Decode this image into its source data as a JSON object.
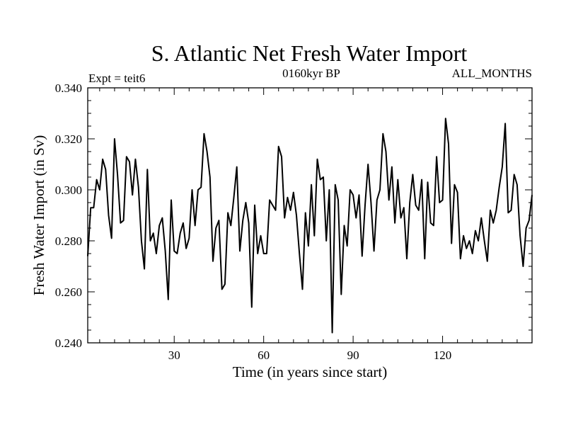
{
  "chart_data": {
    "type": "line",
    "title": "S. Atlantic Net Fresh Water Import",
    "subtitle_left": "Expt = teit6",
    "subtitle_center": "0160kyr BP",
    "subtitle_right": "ALL_MONTHS",
    "xlabel": "Time (in years since start)",
    "ylabel": "Fresh Water Import (in Sv)",
    "xlim": [
      1,
      150
    ],
    "ylim": [
      0.24,
      0.34
    ],
    "x_ticks": [
      30,
      60,
      90,
      120
    ],
    "x_tick_labels": [
      "30",
      "60",
      "90",
      "120"
    ],
    "y_ticks": [
      0.24,
      0.26,
      0.28,
      0.3,
      0.32,
      0.34
    ],
    "y_tick_labels": [
      "0.240",
      "0.260",
      "0.280",
      "0.300",
      "0.320",
      "0.340"
    ],
    "series": [
      {
        "name": "Fresh Water Import",
        "color": "#000000",
        "x": [
          1,
          2,
          3,
          4,
          5,
          6,
          7,
          8,
          9,
          10,
          11,
          12,
          13,
          14,
          15,
          16,
          17,
          18,
          19,
          20,
          21,
          22,
          23,
          24,
          25,
          26,
          27,
          28,
          29,
          30,
          31,
          32,
          33,
          34,
          35,
          36,
          37,
          38,
          39,
          40,
          41,
          42,
          43,
          44,
          45,
          46,
          47,
          48,
          49,
          50,
          51,
          52,
          53,
          54,
          55,
          56,
          57,
          58,
          59,
          60,
          61,
          62,
          63,
          64,
          65,
          66,
          67,
          68,
          69,
          70,
          71,
          72,
          73,
          74,
          75,
          76,
          77,
          78,
          79,
          80,
          81,
          82,
          83,
          84,
          85,
          86,
          87,
          88,
          89,
          90,
          91,
          92,
          93,
          94,
          95,
          96,
          97,
          98,
          99,
          100,
          101,
          102,
          103,
          104,
          105,
          106,
          107,
          108,
          109,
          110,
          111,
          112,
          113,
          114,
          115,
          116,
          117,
          118,
          119,
          120,
          121,
          122,
          123,
          124,
          125,
          126,
          127,
          128,
          129,
          130,
          131,
          132,
          133,
          134,
          135,
          136,
          137,
          138,
          139,
          140,
          141,
          142,
          143,
          144,
          145,
          146,
          147,
          148,
          149,
          150
        ],
        "values": [
          0.274,
          0.293,
          0.293,
          0.304,
          0.3,
          0.312,
          0.308,
          0.29,
          0.281,
          0.32,
          0.306,
          0.287,
          0.288,
          0.313,
          0.311,
          0.298,
          0.312,
          0.301,
          0.28,
          0.269,
          0.308,
          0.28,
          0.283,
          0.275,
          0.286,
          0.289,
          0.276,
          0.257,
          0.296,
          0.276,
          0.275,
          0.283,
          0.287,
          0.277,
          0.281,
          0.3,
          0.286,
          0.3,
          0.301,
          0.322,
          0.315,
          0.305,
          0.272,
          0.285,
          0.288,
          0.261,
          0.263,
          0.291,
          0.286,
          0.297,
          0.309,
          0.276,
          0.288,
          0.295,
          0.287,
          0.254,
          0.294,
          0.275,
          0.282,
          0.275,
          0.275,
          0.296,
          0.294,
          0.292,
          0.317,
          0.313,
          0.289,
          0.297,
          0.292,
          0.299,
          0.29,
          0.275,
          0.261,
          0.291,
          0.278,
          0.302,
          0.282,
          0.312,
          0.304,
          0.305,
          0.28,
          0.3,
          0.244,
          0.302,
          0.296,
          0.259,
          0.286,
          0.278,
          0.3,
          0.298,
          0.289,
          0.298,
          0.274,
          0.294,
          0.31,
          0.295,
          0.276,
          0.296,
          0.3,
          0.322,
          0.315,
          0.296,
          0.309,
          0.287,
          0.304,
          0.289,
          0.293,
          0.273,
          0.295,
          0.306,
          0.294,
          0.292,
          0.304,
          0.273,
          0.303,
          0.287,
          0.286,
          0.313,
          0.295,
          0.296,
          0.328,
          0.318,
          0.279,
          0.302,
          0.299,
          0.273,
          0.282,
          0.277,
          0.28,
          0.275,
          0.284,
          0.28,
          0.289,
          0.28,
          0.272,
          0.292,
          0.287,
          0.292,
          0.301,
          0.309,
          0.326,
          0.291,
          0.292,
          0.306,
          0.302,
          0.282,
          0.27,
          0.285,
          0.288,
          0.298
        ]
      }
    ]
  }
}
